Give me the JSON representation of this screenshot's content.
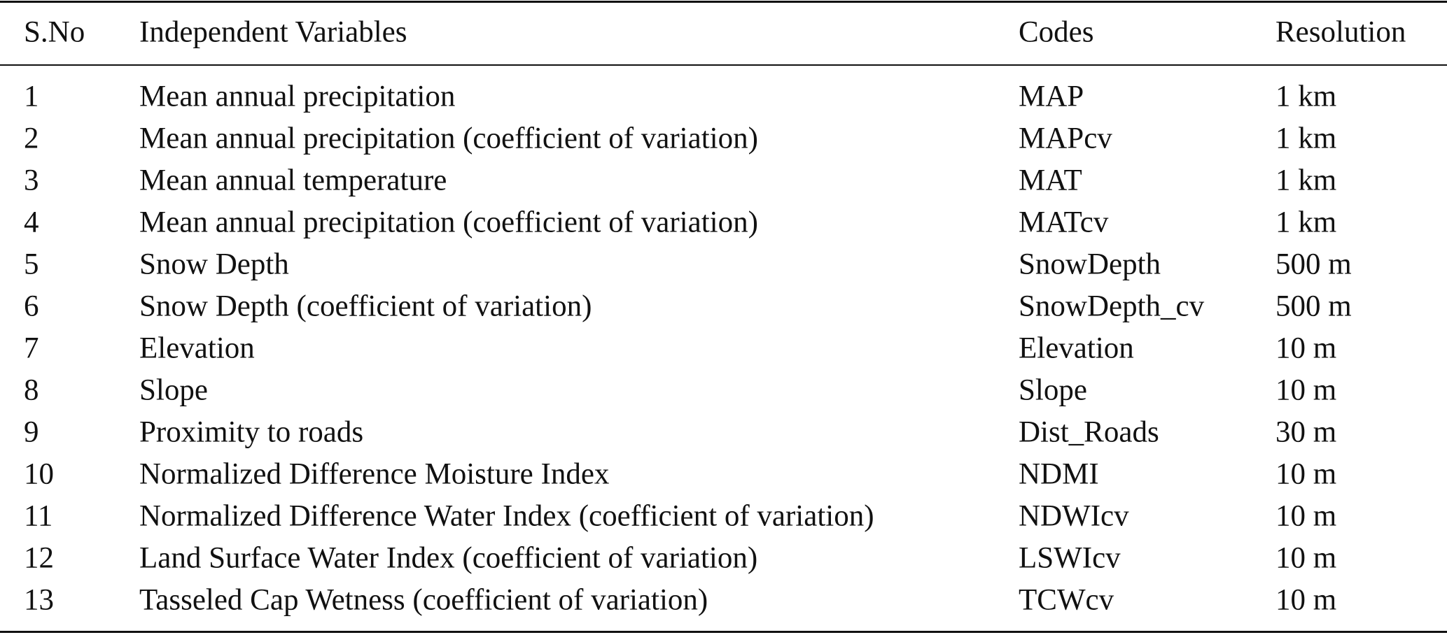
{
  "table": {
    "header": [
      "S.No",
      "Independent Variables",
      "Codes",
      "Resolution"
    ],
    "rows": [
      [
        "1",
        "Mean annual precipitation",
        "MAP",
        "1 km"
      ],
      [
        "2",
        "Mean annual precipitation (coefficient of variation)",
        "MAPcv",
        "1 km"
      ],
      [
        "3",
        "Mean annual temperature",
        "MAT",
        "1 km"
      ],
      [
        "4",
        "Mean annual precipitation (coefficient of variation)",
        "MATcv",
        "1 km"
      ],
      [
        "5",
        "Snow Depth",
        "SnowDepth",
        "500 m"
      ],
      [
        "6",
        "Snow Depth (coefficient of variation)",
        "SnowDepth_cv",
        "500 m"
      ],
      [
        "7",
        "Elevation",
        "Elevation",
        "10 m"
      ],
      [
        "8",
        "Slope",
        "Slope",
        "10 m"
      ],
      [
        "9",
        "Proximity to roads",
        "Dist_Roads",
        "30 m"
      ],
      [
        "10",
        "Normalized Difference Moisture Index",
        "NDMI",
        "10 m"
      ],
      [
        "11",
        "Normalized Difference Water Index (coefficient of variation)",
        "NDWIcv",
        "10 m"
      ],
      [
        "12",
        "Land Surface Water Index (coefficient of variation)",
        "LSWIcv",
        "10 m"
      ],
      [
        "13",
        "Tasseled Cap Wetness (coefficient of variation)",
        "TCWcv",
        "10 m"
      ]
    ]
  }
}
